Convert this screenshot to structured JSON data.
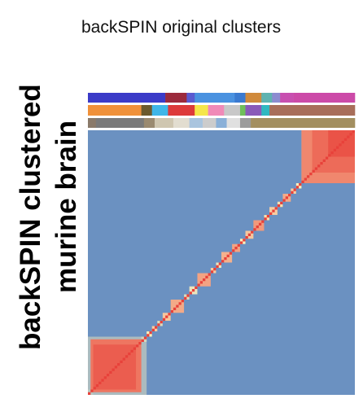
{
  "chart_data": {
    "type": "heatmap",
    "title": "backSPIN original clusters",
    "ylabel_lines": [
      "backSPIN clustered",
      "murine brain"
    ],
    "colormap": {
      "low": "#5b86c1",
      "mid": "#fbf0bc",
      "high": "#e8413a",
      "scale_max": 1.0
    },
    "background_level": 0.05,
    "n_cells": 100,
    "blocks": [
      {
        "start": 0,
        "end": 2,
        "intensity": 0.3
      },
      {
        "start": 2,
        "end": 8,
        "intensity": 0.55
      },
      {
        "start": 8,
        "end": 10,
        "intensity": 0.42
      },
      {
        "start": 10,
        "end": 12,
        "intensity": 0.48
      },
      {
        "start": 12,
        "end": 14,
        "intensity": 0.52
      },
      {
        "start": 14,
        "end": 16,
        "intensity": 0.4
      },
      {
        "start": 16,
        "end": 18,
        "intensity": 0.55
      },
      {
        "start": 18,
        "end": 20,
        "intensity": 0.45
      },
      {
        "start": 20,
        "end": 22,
        "intensity": 0.38
      },
      {
        "start": 22,
        "end": 24,
        "intensity": 0.5
      },
      {
        "start": 24,
        "end": 26,
        "intensity": 0.6
      },
      {
        "start": 26,
        "end": 28,
        "intensity": 0.4
      },
      {
        "start": 28,
        "end": 31,
        "intensity": 0.62
      },
      {
        "start": 31,
        "end": 36,
        "intensity": 0.7
      },
      {
        "start": 36,
        "end": 38,
        "intensity": 0.4
      },
      {
        "start": 38,
        "end": 41,
        "intensity": 0.45
      },
      {
        "start": 41,
        "end": 46,
        "intensity": 0.72
      },
      {
        "start": 46,
        "end": 48,
        "intensity": 0.6
      },
      {
        "start": 48,
        "end": 50,
        "intensity": 0.45
      },
      {
        "start": 50,
        "end": 54,
        "intensity": 0.68
      },
      {
        "start": 54,
        "end": 57,
        "intensity": 0.72
      },
      {
        "start": 57,
        "end": 59,
        "intensity": 0.5
      },
      {
        "start": 59,
        "end": 62,
        "intensity": 0.62
      },
      {
        "start": 62,
        "end": 66,
        "intensity": 0.75
      },
      {
        "start": 66,
        "end": 68,
        "intensity": 0.55
      },
      {
        "start": 68,
        "end": 71,
        "intensity": 0.6
      },
      {
        "start": 71,
        "end": 73,
        "intensity": 0.55
      },
      {
        "start": 73,
        "end": 76,
        "intensity": 0.7
      },
      {
        "start": 76,
        "end": 78,
        "intensity": 0.6
      },
      {
        "start": 78,
        "end": 80,
        "intensity": 0.5
      },
      {
        "start": 80,
        "end": 100,
        "intensity": 0.8
      }
    ],
    "super_blocks": [
      {
        "start": 80,
        "end": 100,
        "intensity": 0.3
      },
      {
        "start": 0,
        "end": 2,
        "intensity": 0.2
      }
    ],
    "bottom_left_block": {
      "start_row": 78,
      "end_row": 100,
      "start_col": 0,
      "end_col": 20,
      "intensity": 0.85,
      "border_intensity": 0.25
    },
    "annotation_rows": [
      {
        "name": "row1",
        "segments": [
          {
            "frac": 0.29,
            "color": "#3b3bc8"
          },
          {
            "frac": 0.08,
            "color": "#9b2a3c"
          },
          {
            "frac": 0.03,
            "color": "#5a5ad0"
          },
          {
            "frac": 0.15,
            "color": "#4a92e0"
          },
          {
            "frac": 0.04,
            "color": "#3a7ad0"
          },
          {
            "frac": 0.06,
            "color": "#d08a3c"
          },
          {
            "frac": 0.04,
            "color": "#5fb3b0"
          },
          {
            "frac": 0.03,
            "color": "#8c8cd0"
          },
          {
            "frac": 0.05,
            "color": "#c84fb0"
          },
          {
            "frac": 0.23,
            "color": "#cc4aa8"
          }
        ]
      },
      {
        "name": "row2",
        "segments": [
          {
            "frac": 0.2,
            "color": "#f0913a"
          },
          {
            "frac": 0.04,
            "color": "#6b5a2e"
          },
          {
            "frac": 0.06,
            "color": "#3fb6e8"
          },
          {
            "frac": 0.1,
            "color": "#dd3a3a"
          },
          {
            "frac": 0.05,
            "color": "#f5e64a"
          },
          {
            "frac": 0.06,
            "color": "#f08ab8"
          },
          {
            "frac": 0.06,
            "color": "#c8c8c8"
          },
          {
            "frac": 0.02,
            "color": "#6fbf5a"
          },
          {
            "frac": 0.06,
            "color": "#8a5ab8"
          },
          {
            "frac": 0.03,
            "color": "#2fb8c0"
          },
          {
            "frac": 0.32,
            "color": "#a86e5a"
          }
        ]
      },
      {
        "name": "row3",
        "segments": [
          {
            "frac": 0.03,
            "color": "#8a7a6a"
          },
          {
            "frac": 0.18,
            "color": "#7a7a7a"
          },
          {
            "frac": 0.04,
            "color": "#9a8a70"
          },
          {
            "frac": 0.07,
            "color": "#cfc6b0"
          },
          {
            "frac": 0.06,
            "color": "#e2ddd0"
          },
          {
            "frac": 0.05,
            "color": "#a9c4de"
          },
          {
            "frac": 0.05,
            "color": "#cccccc"
          },
          {
            "frac": 0.04,
            "color": "#8ab0d8"
          },
          {
            "frac": 0.05,
            "color": "#e0e0e0"
          },
          {
            "frac": 0.04,
            "color": "#9c9c9c"
          },
          {
            "frac": 0.39,
            "color": "#a38f60"
          }
        ]
      }
    ]
  }
}
